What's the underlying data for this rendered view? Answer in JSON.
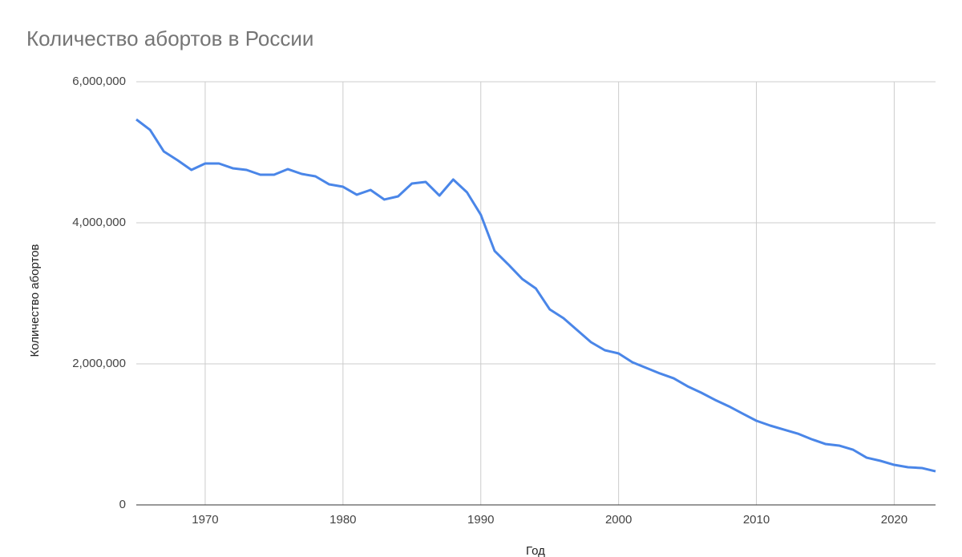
{
  "chart_data": {
    "type": "line",
    "title": "Количество абортов в России",
    "x_label": "Год",
    "y_label": "Количество абортов",
    "x": [
      1965,
      1966,
      1967,
      1968,
      1969,
      1970,
      1971,
      1972,
      1973,
      1974,
      1975,
      1976,
      1977,
      1978,
      1979,
      1980,
      1981,
      1982,
      1983,
      1984,
      1985,
      1986,
      1987,
      1988,
      1989,
      1990,
      1991,
      1992,
      1993,
      1994,
      1995,
      1996,
      1997,
      1998,
      1999,
      2000,
      2001,
      2002,
      2003,
      2004,
      2005,
      2006,
      2007,
      2008,
      2009,
      2010,
      2011,
      2012,
      2013,
      2014,
      2015,
      2016,
      2017,
      2018,
      2019,
      2020,
      2021,
      2022,
      2023
    ],
    "series": [
      {
        "name": "Количество абортов",
        "color": "#4a86e8",
        "values": [
          5466000,
          5318000,
          5011000,
          4886000,
          4750000,
          4841000,
          4841000,
          4773000,
          4750000,
          4682000,
          4682000,
          4761000,
          4693000,
          4659000,
          4545000,
          4511000,
          4398000,
          4466000,
          4330000,
          4375000,
          4557000,
          4580000,
          4386000,
          4614000,
          4432000,
          4114000,
          3602000,
          3409000,
          3205000,
          3068000,
          2773000,
          2648000,
          2477000,
          2307000,
          2193000,
          2148000,
          2023000,
          1943000,
          1864000,
          1795000,
          1682000,
          1591000,
          1489000,
          1398000,
          1295000,
          1193000,
          1125000,
          1068000,
          1011000,
          932000,
          864000,
          841000,
          784000,
          670000,
          625000,
          568000,
          534000,
          523000,
          477000
        ]
      }
    ],
    "xlim": [
      1965,
      2023
    ],
    "xticks": [
      1970,
      1980,
      1990,
      2000,
      2010,
      2020
    ],
    "ylim": [
      0,
      6000000
    ],
    "yticks": [
      0,
      {
        "value": 2000000,
        "label": "2,000,000"
      },
      {
        "value": 4000000,
        "label": "4,000,000"
      },
      {
        "value": 6000000,
        "label": "6,000,000"
      }
    ],
    "grid": true
  }
}
